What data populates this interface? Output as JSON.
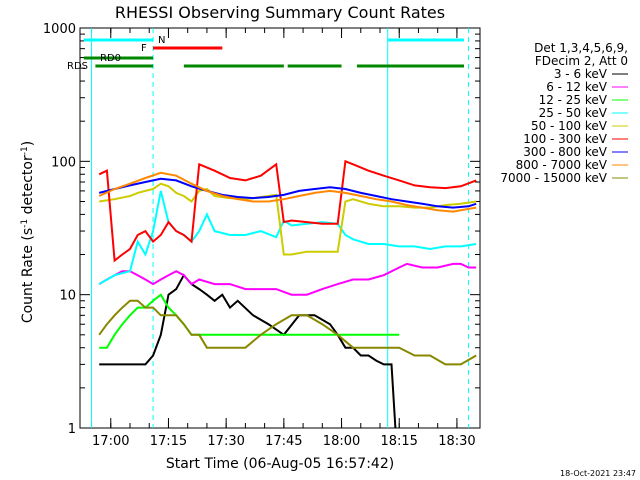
{
  "chart_data": {
    "type": "line",
    "title": "RHESSI Observing Summary Count Rates",
    "xlabel": "Start Time (06-Aug-05 16:57:42)",
    "ylabel_main": "Count Rate (s",
    "ylabel_sup1": "-1",
    "ylabel_mid": " detector",
    "ylabel_sup2": "-1",
    "ylabel_end": ")",
    "footer_date": "18-Oct-2021 23:47",
    "x_start_min": 0,
    "xlim_minutes_since_1657": [
      -5,
      99
    ],
    "ylog": true,
    "ylim": [
      1,
      1000
    ],
    "x_ticks": [
      {
        "label": "17:00",
        "t": 3
      },
      {
        "label": "17:15",
        "t": 18
      },
      {
        "label": "17:30",
        "t": 33
      },
      {
        "label": "17:45",
        "t": 48
      },
      {
        "label": "18:00",
        "t": 63
      },
      {
        "label": "18:15",
        "t": 78
      },
      {
        "label": "18:30",
        "t": 93
      }
    ],
    "y_ticks": [
      {
        "label": "1",
        "v": 1
      },
      {
        "label": "10",
        "v": 10
      },
      {
        "label": "100",
        "v": 100
      },
      {
        "label": "1000",
        "v": 1000
      }
    ],
    "legend_header": [
      "Det 1,3,4,5,6,9,",
      "FDecim 2, Att 0"
    ],
    "legend_position": "right",
    "series": [
      {
        "name": "3 - 6 keV",
        "color": "#000000",
        "t": [
          0,
          6,
          12,
          14,
          16,
          18,
          20,
          22,
          24,
          26,
          28,
          30,
          32,
          34,
          36,
          40,
          44,
          48,
          52,
          56,
          60,
          62,
          64,
          66,
          68,
          70,
          72,
          74,
          76,
          77,
          77.5,
          78,
          80
        ],
        "v": [
          3,
          3,
          3,
          3.5,
          5,
          10,
          11,
          14,
          12,
          11,
          10,
          9,
          10,
          8,
          9,
          7,
          6,
          5,
          7,
          7,
          6,
          5,
          4,
          4,
          3.5,
          3.5,
          3.2,
          3,
          3,
          1,
          null,
          null,
          null
        ]
      },
      {
        "name": "6 - 12 keV",
        "color": "#ff00ff",
        "t": [
          0,
          2,
          4,
          6,
          8,
          10,
          12,
          14,
          16,
          18,
          20,
          22,
          24,
          26,
          30,
          34,
          38,
          42,
          46,
          50,
          54,
          58,
          62,
          66,
          70,
          74,
          78,
          80,
          84,
          88,
          92,
          94,
          96,
          98
        ],
        "v": [
          12,
          13,
          14,
          15,
          15,
          14,
          13,
          12,
          13,
          14,
          15,
          14,
          12,
          13,
          12,
          12,
          11,
          11,
          11,
          10,
          10,
          11,
          12,
          13,
          13,
          14,
          16,
          17,
          16,
          16,
          17,
          17,
          16,
          16
        ]
      },
      {
        "name": "12 - 25 keV",
        "color": "#00ff00",
        "t": [
          0,
          2,
          4,
          6,
          8,
          10,
          12,
          14,
          16,
          18,
          20,
          22,
          24,
          26,
          28,
          30,
          34,
          38,
          42,
          46,
          50,
          54,
          58,
          62,
          66,
          70,
          74,
          78
        ],
        "v": [
          4,
          4,
          5,
          6,
          7,
          8,
          8,
          9,
          10,
          8,
          7,
          6,
          5,
          5,
          5,
          5,
          5,
          5,
          5,
          5,
          5,
          5,
          5,
          5,
          5,
          5,
          5,
          5
        ]
      },
      {
        "name": "25 - 50 keV",
        "color": "#00ffff",
        "t": [
          0,
          4,
          8,
          10,
          12,
          14,
          16,
          18,
          20,
          22,
          24,
          26,
          28,
          30,
          34,
          38,
          42,
          46,
          48,
          50,
          54,
          58,
          62,
          64,
          66,
          70,
          74,
          78,
          82,
          86,
          90,
          94,
          98
        ],
        "v": [
          12,
          14,
          15,
          25,
          20,
          30,
          60,
          35,
          30,
          28,
          25,
          30,
          40,
          30,
          28,
          28,
          30,
          27,
          36,
          33,
          34,
          35,
          34,
          28,
          26,
          24,
          24,
          23,
          23,
          22,
          23,
          23,
          24
        ]
      },
      {
        "name": "50 - 100 keV",
        "color": "#cccc00",
        "t": [
          0,
          4,
          8,
          10,
          12,
          14,
          16,
          18,
          20,
          22,
          24,
          26,
          28,
          30,
          34,
          38,
          42,
          46,
          48,
          50,
          54,
          58,
          62,
          64,
          66,
          70,
          74,
          78,
          82,
          86,
          90,
          94,
          98
        ],
        "v": [
          50,
          52,
          55,
          58,
          60,
          62,
          68,
          65,
          58,
          55,
          50,
          60,
          62,
          55,
          53,
          52,
          54,
          56,
          20,
          20,
          21,
          21,
          21,
          50,
          52,
          48,
          46,
          46,
          45,
          45,
          47,
          48,
          50
        ]
      },
      {
        "name": "100 - 300 keV",
        "color": "#ff0000",
        "t": [
          0,
          2,
          4,
          6,
          8,
          10,
          12,
          14,
          16,
          18,
          20,
          22,
          24,
          26,
          30,
          34,
          38,
          42,
          46,
          48,
          50,
          54,
          58,
          62,
          64,
          66,
          70,
          74,
          78,
          82,
          86,
          90,
          94,
          98
        ],
        "v": [
          80,
          85,
          18,
          20,
          22,
          28,
          30,
          25,
          28,
          35,
          30,
          28,
          25,
          95,
          85,
          75,
          72,
          78,
          95,
          35,
          36,
          35,
          34,
          34,
          100,
          95,
          85,
          78,
          72,
          66,
          64,
          63,
          65,
          72
        ]
      },
      {
        "name": "300 - 800 keV",
        "color": "#0000ff",
        "t": [
          0,
          4,
          8,
          12,
          16,
          20,
          24,
          28,
          32,
          36,
          40,
          44,
          48,
          52,
          56,
          60,
          64,
          68,
          72,
          76,
          80,
          84,
          88,
          92,
          96,
          98
        ],
        "v": [
          58,
          62,
          66,
          70,
          74,
          72,
          65,
          60,
          56,
          54,
          53,
          54,
          56,
          60,
          62,
          64,
          62,
          58,
          55,
          52,
          50,
          48,
          46,
          45,
          46,
          48
        ]
      },
      {
        "name": "800 - 7000 keV",
        "color": "#ff8800",
        "t": [
          0,
          4,
          8,
          12,
          16,
          20,
          24,
          28,
          32,
          36,
          40,
          44,
          48,
          52,
          56,
          60,
          64,
          68,
          72,
          76,
          80,
          84,
          88,
          92,
          96,
          98
        ],
        "v": [
          55,
          62,
          68,
          75,
          82,
          78,
          68,
          60,
          55,
          52,
          50,
          50,
          52,
          55,
          58,
          60,
          58,
          55,
          52,
          50,
          47,
          45,
          43,
          42,
          44,
          45
        ]
      },
      {
        "name": "7000 - 15000 keV",
        "color": "#888800",
        "t": [
          0,
          2,
          4,
          6,
          8,
          10,
          12,
          14,
          16,
          18,
          20,
          22,
          24,
          26,
          28,
          30,
          34,
          38,
          42,
          46,
          50,
          54,
          58,
          62,
          66,
          70,
          74,
          78,
          82,
          86,
          90,
          94,
          98
        ],
        "v": [
          5,
          6,
          7,
          8,
          9,
          9,
          8,
          8,
          7,
          7,
          7,
          6,
          5,
          5,
          4,
          4,
          4,
          4,
          5,
          6,
          7,
          7,
          6,
          5,
          4,
          4,
          4,
          4,
          3.5,
          3.5,
          3,
          3,
          3.5
        ]
      }
    ],
    "flag_bars": [
      {
        "label": "N",
        "color": "#00ffff",
        "segments": [
          [
            -4,
            14
          ],
          [
            75,
            99
          ]
        ],
        "level": 0
      },
      {
        "label": "F",
        "color": "#ff0000",
        "segments": [
          [
            14,
            32
          ]
        ],
        "level": 1
      },
      {
        "label": "RD0",
        "color": "#008800",
        "segments": [
          [
            -4,
            14
          ]
        ],
        "level": 2
      },
      {
        "label": "RDS",
        "color": "#008800",
        "segments": [
          [
            -1,
            14
          ],
          [
            22,
            48
          ],
          [
            49,
            63
          ],
          [
            67,
            99
          ]
        ],
        "level": 3
      }
    ],
    "vlines": [
      {
        "t": -2,
        "color": "#00ffff",
        "style": "solid"
      },
      {
        "t": 14,
        "color": "#00ffff",
        "style": "dashed"
      },
      {
        "t": 75,
        "color": "#00ffff",
        "style": "solid"
      },
      {
        "t": 96,
        "color": "#00ffff",
        "style": "dashed"
      }
    ]
  }
}
